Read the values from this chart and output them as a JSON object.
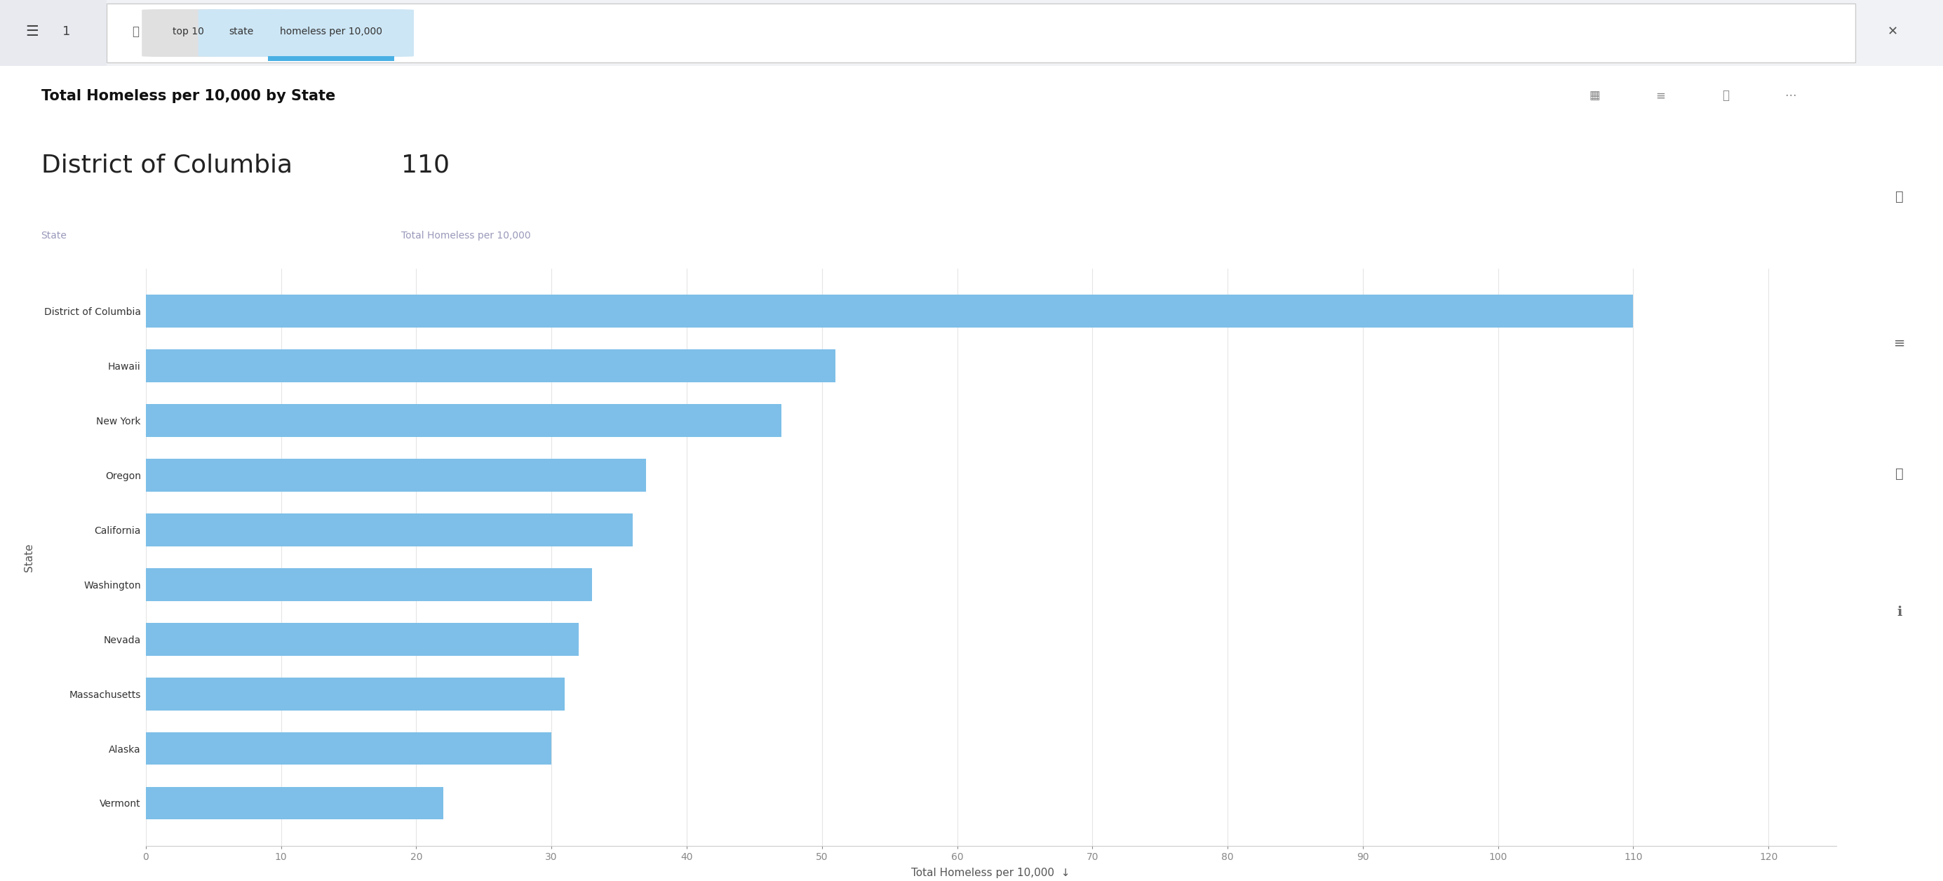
{
  "title": "Total Homeless per 10,000 by State",
  "subtitle_state": "District of Columbia",
  "subtitle_value": "110",
  "subtitle_state_label": "State",
  "subtitle_value_label": "Total Homeless per 10,000",
  "categories_top_to_bottom": [
    "District of Columbia",
    "Hawaii",
    "New York",
    "Oregon",
    "California",
    "Washington",
    "Nevada",
    "Massachusetts",
    "Alaska",
    "Vermont"
  ],
  "values_top_to_bottom": [
    110,
    51,
    47,
    37,
    36,
    33,
    32,
    31,
    30,
    22
  ],
  "bar_color": "#7dbfe8",
  "bar_height": 0.6,
  "xlim": [
    0,
    125
  ],
  "xticks": [
    0,
    10,
    20,
    30,
    40,
    50,
    60,
    70,
    80,
    90,
    100,
    110,
    120
  ],
  "xlabel": "Total Homeless per 10,000",
  "ylabel": "State",
  "background_color": "#ffffff",
  "title_fontsize": 15,
  "axis_label_fontsize": 11,
  "tick_fontsize": 10,
  "subtitle_state_fontsize": 26,
  "subtitle_value_fontsize": 26,
  "subtitle_label_fontsize": 10,
  "search_tag_colors": [
    "#e0e0e0",
    "#cde6f5",
    "#cde6f5"
  ],
  "search_tags": [
    "top 10",
    "state",
    "homeless per 10,000"
  ]
}
